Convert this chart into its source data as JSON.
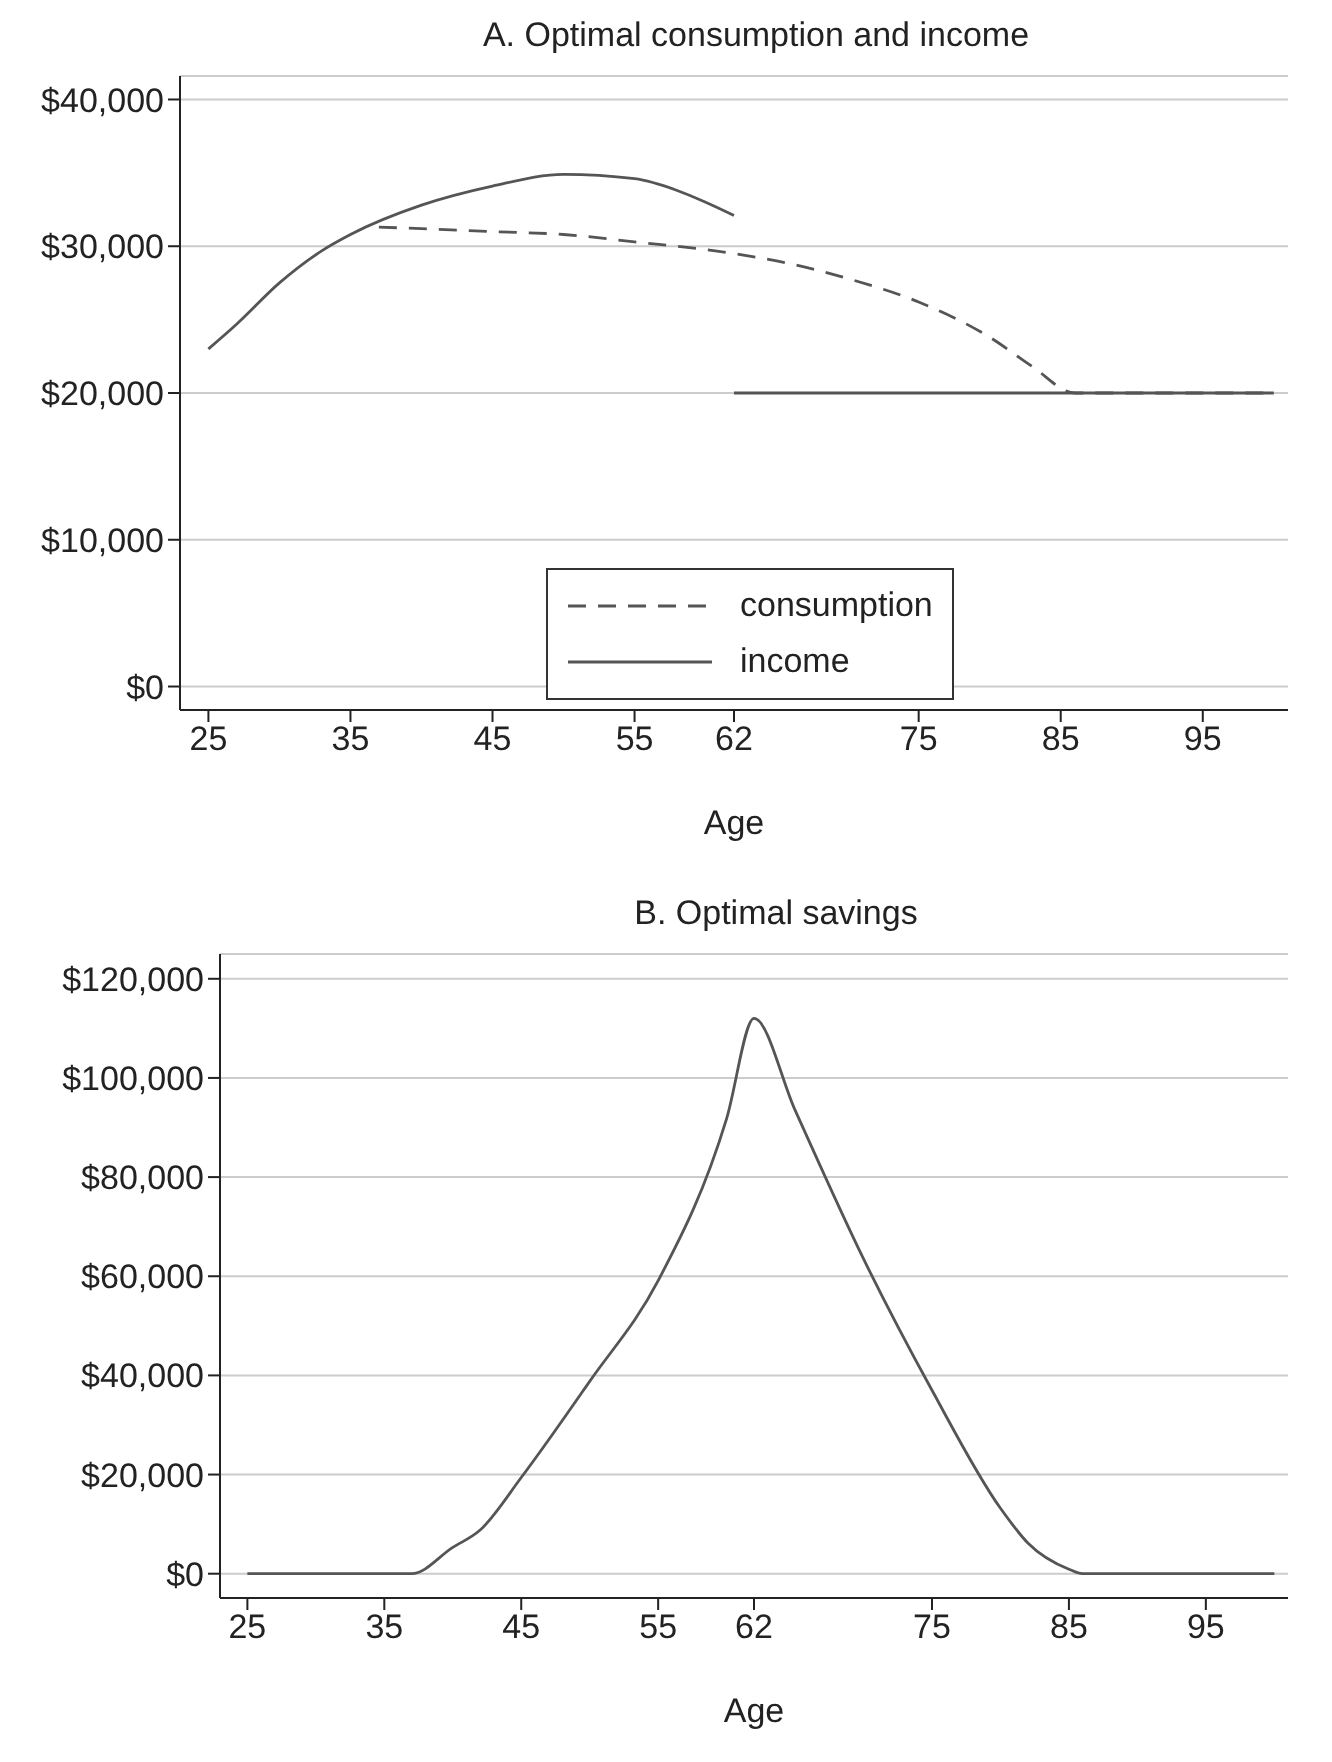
{
  "chart_data": [
    {
      "type": "line",
      "title": "A. Optimal consumption and income",
      "xlabel": "Age",
      "xlim": [
        23,
        101
      ],
      "xticks": [
        25,
        35,
        45,
        55,
        62,
        75,
        85,
        95
      ],
      "ylim": [
        -1600,
        41600
      ],
      "yticks": [
        {
          "value": 0,
          "label": "$0"
        },
        {
          "value": 10000,
          "label": "$10,000"
        },
        {
          "value": 20000,
          "label": "$20,000"
        },
        {
          "value": 30000,
          "label": "$30,000"
        },
        {
          "value": 40000,
          "label": "$40,000"
        }
      ],
      "grid": "y",
      "legend": "bottom",
      "marker": "none",
      "series": [
        {
          "name": "consumption",
          "color": "#555555",
          "line_style": "dashed",
          "x": [
            37,
            40,
            45,
            50,
            55,
            62,
            65,
            70,
            75,
            80,
            83,
            86,
            100
          ],
          "values": [
            31300,
            31200,
            31000,
            30800,
            30300,
            29500,
            29000,
            27800,
            26200,
            23800,
            21800,
            20000,
            20000
          ]
        },
        {
          "name": "income",
          "color": "#555555",
          "line_style": "solid",
          "x": [
            25,
            27,
            30,
            33,
            35,
            40,
            45,
            50,
            55,
            58,
            60,
            62
          ],
          "values": [
            23000,
            24700,
            27500,
            29700,
            30800,
            32800,
            34100,
            34900,
            34600,
            33800,
            33000,
            32100
          ]
        },
        {
          "color": "#555555",
          "line_style": "solid",
          "x": [
            62,
            100
          ],
          "values": [
            20000,
            20000
          ]
        }
      ]
    },
    {
      "type": "line",
      "title": "B. Optimal savings",
      "xlabel": "Age",
      "xlim": [
        23,
        101
      ],
      "xticks": [
        25,
        35,
        45,
        55,
        62,
        75,
        85,
        95
      ],
      "ylim": [
        -4900,
        125000
      ],
      "yticks": [
        {
          "value": 0,
          "label": "$0"
        },
        {
          "value": 20000,
          "label": "$20,000"
        },
        {
          "value": 40000,
          "label": "$40,000"
        },
        {
          "value": 60000,
          "label": "$60,000"
        },
        {
          "value": 80000,
          "label": "$80,000"
        },
        {
          "value": 100000,
          "label": "$100,000"
        },
        {
          "value": 120000,
          "label": "$120,000"
        }
      ],
      "grid": "y",
      "legend": false,
      "marker": "none",
      "series": [
        {
          "color": "#555555",
          "line_style": "solid",
          "x": [
            25,
            35,
            37,
            40,
            42,
            45,
            50,
            55,
            60,
            62,
            65,
            70,
            75,
            80,
            82,
            85,
            86,
            100
          ],
          "values": [
            0,
            0,
            0,
            5300,
            8800,
            19400,
            38800,
            59100,
            91800,
            112000,
            93500,
            63500,
            37000,
            13200,
            6200,
            900,
            0,
            0
          ]
        }
      ]
    }
  ]
}
